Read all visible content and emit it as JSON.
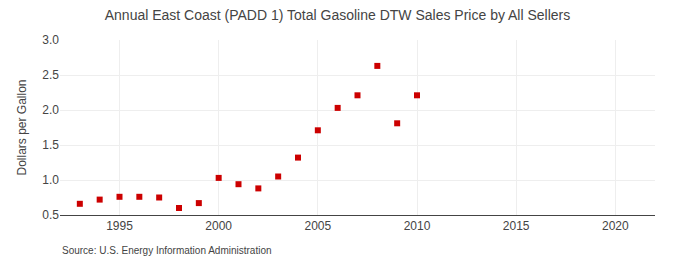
{
  "chart_data": {
    "type": "scatter",
    "title": "Annual East Coast (PADD 1) Total Gasoline DTW Sales Price by All Sellers",
    "ylabel": "Dollars per Gallon",
    "annotations": [
      "Source: U.S. Energy Information Administration"
    ],
    "x": [
      1993,
      1994,
      1995,
      1996,
      1997,
      1998,
      1999,
      2000,
      2001,
      2002,
      2003,
      2004,
      2005,
      2006,
      2007,
      2008,
      2009,
      2010
    ],
    "values": [
      0.66,
      0.72,
      0.76,
      0.76,
      0.75,
      0.6,
      0.67,
      1.03,
      0.94,
      0.88,
      1.05,
      1.32,
      1.71,
      2.03,
      2.21,
      2.63,
      1.81,
      2.21
    ],
    "color": "#cc0000",
    "marker": "square",
    "xlim": [
      1992,
      2022
    ],
    "xticks": [
      1995,
      2000,
      2005,
      2010,
      2015,
      2020
    ],
    "ylim": [
      0.5,
      3.0
    ],
    "yticks": [
      0.5,
      {
        "value": 1.0,
        "label": "1.0"
      },
      1.5,
      {
        "value": 2.0,
        "label": "2.0"
      },
      2.5,
      {
        "value": 3.0,
        "label": "3.0"
      }
    ],
    "grid": true
  }
}
